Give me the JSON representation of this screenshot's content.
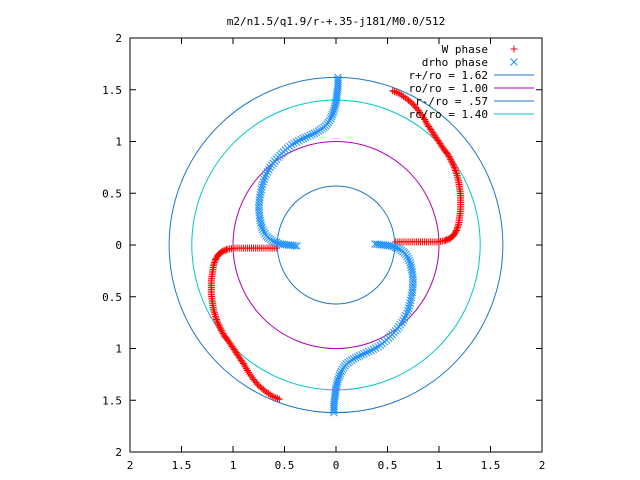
{
  "chart_data": {
    "type": "scatter",
    "title": "m2/n1.5/q1.9/r-+.35-j181/M0.0/512",
    "xlabel": "",
    "ylabel": "",
    "xlim": [
      -2,
      2
    ],
    "ylim": [
      -2,
      2
    ],
    "x_tick_values": [
      -2,
      -1.5,
      -1,
      -0.5,
      0,
      0.5,
      1,
      1.5,
      2
    ],
    "x_tick_labels": [
      "2",
      "1.5",
      "1",
      "0.5",
      "0",
      "0.5",
      "1",
      "1.5",
      "2"
    ],
    "y_tick_values": [
      2,
      1.5,
      1,
      0.5,
      0,
      -0.5,
      -1,
      -1.5,
      -2
    ],
    "y_tick_labels": [
      "2",
      "1.5",
      "1",
      "0.5",
      "0",
      "0.5",
      "1",
      "1.5",
      "2"
    ],
    "grid": false,
    "legend_position": "top-right",
    "series": [
      {
        "name": "W phase",
        "marker": "plus",
        "color": "#ff0000",
        "points": [
          [
            0.55,
            1.49
          ],
          [
            0.62,
            1.46
          ],
          [
            0.69,
            1.41
          ],
          [
            0.75,
            1.36
          ],
          [
            0.8,
            1.3
          ],
          [
            0.85,
            1.23
          ],
          [
            0.89,
            1.16
          ],
          [
            0.93,
            1.1
          ],
          [
            0.97,
            1.04
          ],
          [
            1.01,
            0.98
          ],
          [
            1.05,
            0.92
          ],
          [
            1.09,
            0.87
          ],
          [
            1.12,
            0.81
          ],
          [
            1.15,
            0.75
          ],
          [
            1.17,
            0.69
          ],
          [
            1.19,
            0.62
          ],
          [
            1.2,
            0.55
          ],
          [
            1.21,
            0.48
          ],
          [
            1.21,
            0.41
          ],
          [
            1.21,
            0.34
          ],
          [
            1.2,
            0.27
          ],
          [
            1.19,
            0.2
          ],
          [
            1.17,
            0.14
          ],
          [
            1.14,
            0.09
          ],
          [
            1.1,
            0.06
          ],
          [
            1.05,
            0.04
          ],
          [
            0.98,
            0.03
          ],
          [
            0.9,
            0.03
          ],
          [
            0.82,
            0.03
          ],
          [
            0.74,
            0.03
          ],
          [
            0.66,
            0.03
          ],
          [
            0.58,
            0.03
          ],
          [
            -0.55,
            -1.49
          ],
          [
            -0.62,
            -1.46
          ],
          [
            -0.69,
            -1.41
          ],
          [
            -0.75,
            -1.36
          ],
          [
            -0.8,
            -1.3
          ],
          [
            -0.85,
            -1.23
          ],
          [
            -0.89,
            -1.16
          ],
          [
            -0.93,
            -1.1
          ],
          [
            -0.97,
            -1.04
          ],
          [
            -1.01,
            -0.98
          ],
          [
            -1.05,
            -0.92
          ],
          [
            -1.09,
            -0.87
          ],
          [
            -1.12,
            -0.81
          ],
          [
            -1.15,
            -0.75
          ],
          [
            -1.17,
            -0.69
          ],
          [
            -1.19,
            -0.62
          ],
          [
            -1.2,
            -0.55
          ],
          [
            -1.21,
            -0.48
          ],
          [
            -1.21,
            -0.41
          ],
          [
            -1.21,
            -0.34
          ],
          [
            -1.2,
            -0.27
          ],
          [
            -1.19,
            -0.2
          ],
          [
            -1.17,
            -0.14
          ],
          [
            -1.14,
            -0.09
          ],
          [
            -1.1,
            -0.06
          ],
          [
            -1.05,
            -0.04
          ],
          [
            -0.98,
            -0.03
          ],
          [
            -0.9,
            -0.03
          ],
          [
            -0.82,
            -0.03
          ],
          [
            -0.74,
            -0.03
          ],
          [
            -0.66,
            -0.03
          ],
          [
            -0.58,
            -0.03
          ]
        ]
      },
      {
        "name": "drho phase",
        "marker": "cross",
        "color": "#1e90ff",
        "points": [
          [
            0.02,
            1.62
          ],
          [
            0.02,
            1.54
          ],
          [
            0.01,
            1.46
          ],
          [
            0.0,
            1.38
          ],
          [
            -0.02,
            1.3
          ],
          [
            -0.05,
            1.22
          ],
          [
            -0.1,
            1.15
          ],
          [
            -0.17,
            1.1
          ],
          [
            -0.25,
            1.06
          ],
          [
            -0.34,
            1.02
          ],
          [
            -0.43,
            0.97
          ],
          [
            -0.51,
            0.9
          ],
          [
            -0.58,
            0.83
          ],
          [
            -0.64,
            0.75
          ],
          [
            -0.69,
            0.66
          ],
          [
            -0.72,
            0.56
          ],
          [
            -0.74,
            0.46
          ],
          [
            -0.75,
            0.36
          ],
          [
            -0.74,
            0.26
          ],
          [
            -0.72,
            0.17
          ],
          [
            -0.68,
            0.09
          ],
          [
            -0.62,
            0.04
          ],
          [
            -0.54,
            0.01
          ],
          [
            -0.46,
            0.0
          ],
          [
            -0.38,
            -0.01
          ],
          [
            -0.02,
            -1.62
          ],
          [
            -0.02,
            -1.54
          ],
          [
            -0.01,
            -1.46
          ],
          [
            0.0,
            -1.38
          ],
          [
            0.02,
            -1.3
          ],
          [
            0.05,
            -1.22
          ],
          [
            0.1,
            -1.15
          ],
          [
            0.17,
            -1.1
          ],
          [
            0.25,
            -1.06
          ],
          [
            0.34,
            -1.02
          ],
          [
            0.43,
            -0.97
          ],
          [
            0.51,
            -0.9
          ],
          [
            0.58,
            -0.83
          ],
          [
            0.64,
            -0.75
          ],
          [
            0.69,
            -0.66
          ],
          [
            0.72,
            -0.56
          ],
          [
            0.74,
            -0.46
          ],
          [
            0.75,
            -0.36
          ],
          [
            0.74,
            -0.26
          ],
          [
            0.72,
            -0.17
          ],
          [
            0.68,
            -0.09
          ],
          [
            0.62,
            -0.04
          ],
          [
            0.54,
            -0.01
          ],
          [
            0.46,
            0.0
          ],
          [
            0.38,
            0.01
          ]
        ]
      }
    ],
    "circles": [
      {
        "label": "r+/ro = 1.62",
        "radius": 1.62,
        "color": "#1f78c8"
      },
      {
        "label": "ro/ro = 1.00",
        "radius": 1.0,
        "color": "#b000b0"
      },
      {
        "label": "r-/ro = .57",
        "radius": 0.57,
        "color": "#1f78c8"
      },
      {
        "label": "rc/ro = 1.40",
        "radius": 1.4,
        "color": "#00c8c8"
      }
    ]
  }
}
